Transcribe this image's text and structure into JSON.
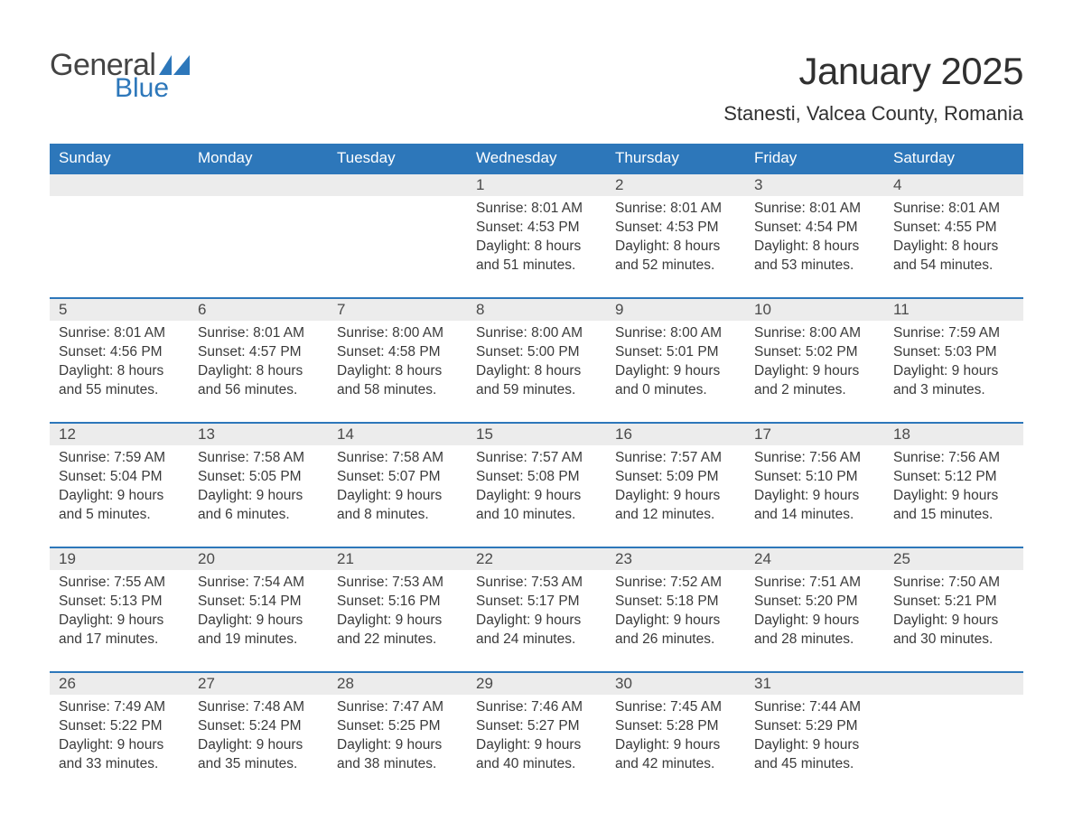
{
  "logo": {
    "text_general": "General",
    "text_blue": "Blue",
    "flag_color": "#2d77ba"
  },
  "title": "January 2025",
  "location": "Stanesti, Valcea County, Romania",
  "colors": {
    "header_bg": "#2d77ba",
    "header_text": "#ffffff",
    "row_border": "#2d77ba",
    "daynum_bg": "#ececec",
    "body_text": "#3a3a3a",
    "page_bg": "#ffffff"
  },
  "weekdays": [
    "Sunday",
    "Monday",
    "Tuesday",
    "Wednesday",
    "Thursday",
    "Friday",
    "Saturday"
  ],
  "weeks": [
    [
      null,
      null,
      null,
      {
        "num": "1",
        "sunrise": "8:01 AM",
        "sunset": "4:53 PM",
        "daylight1": "Daylight: 8 hours",
        "daylight2": "and 51 minutes."
      },
      {
        "num": "2",
        "sunrise": "8:01 AM",
        "sunset": "4:53 PM",
        "daylight1": "Daylight: 8 hours",
        "daylight2": "and 52 minutes."
      },
      {
        "num": "3",
        "sunrise": "8:01 AM",
        "sunset": "4:54 PM",
        "daylight1": "Daylight: 8 hours",
        "daylight2": "and 53 minutes."
      },
      {
        "num": "4",
        "sunrise": "8:01 AM",
        "sunset": "4:55 PM",
        "daylight1": "Daylight: 8 hours",
        "daylight2": "and 54 minutes."
      }
    ],
    [
      {
        "num": "5",
        "sunrise": "8:01 AM",
        "sunset": "4:56 PM",
        "daylight1": "Daylight: 8 hours",
        "daylight2": "and 55 minutes."
      },
      {
        "num": "6",
        "sunrise": "8:01 AM",
        "sunset": "4:57 PM",
        "daylight1": "Daylight: 8 hours",
        "daylight2": "and 56 minutes."
      },
      {
        "num": "7",
        "sunrise": "8:00 AM",
        "sunset": "4:58 PM",
        "daylight1": "Daylight: 8 hours",
        "daylight2": "and 58 minutes."
      },
      {
        "num": "8",
        "sunrise": "8:00 AM",
        "sunset": "5:00 PM",
        "daylight1": "Daylight: 8 hours",
        "daylight2": "and 59 minutes."
      },
      {
        "num": "9",
        "sunrise": "8:00 AM",
        "sunset": "5:01 PM",
        "daylight1": "Daylight: 9 hours",
        "daylight2": "and 0 minutes."
      },
      {
        "num": "10",
        "sunrise": "8:00 AM",
        "sunset": "5:02 PM",
        "daylight1": "Daylight: 9 hours",
        "daylight2": "and 2 minutes."
      },
      {
        "num": "11",
        "sunrise": "7:59 AM",
        "sunset": "5:03 PM",
        "daylight1": "Daylight: 9 hours",
        "daylight2": "and 3 minutes."
      }
    ],
    [
      {
        "num": "12",
        "sunrise": "7:59 AM",
        "sunset": "5:04 PM",
        "daylight1": "Daylight: 9 hours",
        "daylight2": "and 5 minutes."
      },
      {
        "num": "13",
        "sunrise": "7:58 AM",
        "sunset": "5:05 PM",
        "daylight1": "Daylight: 9 hours",
        "daylight2": "and 6 minutes."
      },
      {
        "num": "14",
        "sunrise": "7:58 AM",
        "sunset": "5:07 PM",
        "daylight1": "Daylight: 9 hours",
        "daylight2": "and 8 minutes."
      },
      {
        "num": "15",
        "sunrise": "7:57 AM",
        "sunset": "5:08 PM",
        "daylight1": "Daylight: 9 hours",
        "daylight2": "and 10 minutes."
      },
      {
        "num": "16",
        "sunrise": "7:57 AM",
        "sunset": "5:09 PM",
        "daylight1": "Daylight: 9 hours",
        "daylight2": "and 12 minutes."
      },
      {
        "num": "17",
        "sunrise": "7:56 AM",
        "sunset": "5:10 PM",
        "daylight1": "Daylight: 9 hours",
        "daylight2": "and 14 minutes."
      },
      {
        "num": "18",
        "sunrise": "7:56 AM",
        "sunset": "5:12 PM",
        "daylight1": "Daylight: 9 hours",
        "daylight2": "and 15 minutes."
      }
    ],
    [
      {
        "num": "19",
        "sunrise": "7:55 AM",
        "sunset": "5:13 PM",
        "daylight1": "Daylight: 9 hours",
        "daylight2": "and 17 minutes."
      },
      {
        "num": "20",
        "sunrise": "7:54 AM",
        "sunset": "5:14 PM",
        "daylight1": "Daylight: 9 hours",
        "daylight2": "and 19 minutes."
      },
      {
        "num": "21",
        "sunrise": "7:53 AM",
        "sunset": "5:16 PM",
        "daylight1": "Daylight: 9 hours",
        "daylight2": "and 22 minutes."
      },
      {
        "num": "22",
        "sunrise": "7:53 AM",
        "sunset": "5:17 PM",
        "daylight1": "Daylight: 9 hours",
        "daylight2": "and 24 minutes."
      },
      {
        "num": "23",
        "sunrise": "7:52 AM",
        "sunset": "5:18 PM",
        "daylight1": "Daylight: 9 hours",
        "daylight2": "and 26 minutes."
      },
      {
        "num": "24",
        "sunrise": "7:51 AM",
        "sunset": "5:20 PM",
        "daylight1": "Daylight: 9 hours",
        "daylight2": "and 28 minutes."
      },
      {
        "num": "25",
        "sunrise": "7:50 AM",
        "sunset": "5:21 PM",
        "daylight1": "Daylight: 9 hours",
        "daylight2": "and 30 minutes."
      }
    ],
    [
      {
        "num": "26",
        "sunrise": "7:49 AM",
        "sunset": "5:22 PM",
        "daylight1": "Daylight: 9 hours",
        "daylight2": "and 33 minutes."
      },
      {
        "num": "27",
        "sunrise": "7:48 AM",
        "sunset": "5:24 PM",
        "daylight1": "Daylight: 9 hours",
        "daylight2": "and 35 minutes."
      },
      {
        "num": "28",
        "sunrise": "7:47 AM",
        "sunset": "5:25 PM",
        "daylight1": "Daylight: 9 hours",
        "daylight2": "and 38 minutes."
      },
      {
        "num": "29",
        "sunrise": "7:46 AM",
        "sunset": "5:27 PM",
        "daylight1": "Daylight: 9 hours",
        "daylight2": "and 40 minutes."
      },
      {
        "num": "30",
        "sunrise": "7:45 AM",
        "sunset": "5:28 PM",
        "daylight1": "Daylight: 9 hours",
        "daylight2": "and 42 minutes."
      },
      {
        "num": "31",
        "sunrise": "7:44 AM",
        "sunset": "5:29 PM",
        "daylight1": "Daylight: 9 hours",
        "daylight2": "and 45 minutes."
      },
      null
    ]
  ],
  "labels": {
    "sunrise_prefix": "Sunrise: ",
    "sunset_prefix": "Sunset: "
  }
}
